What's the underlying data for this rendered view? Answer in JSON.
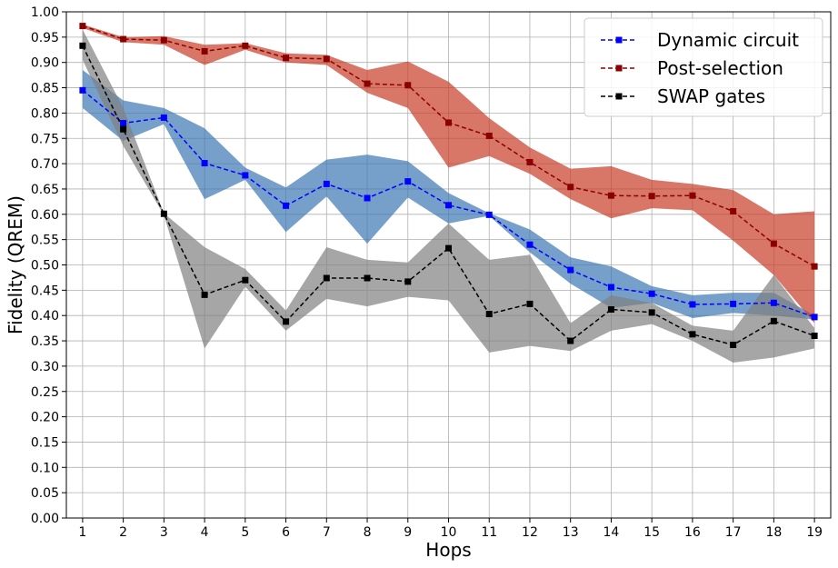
{
  "chart_data": {
    "type": "line",
    "xlabel": "Hops",
    "ylabel": "Fidelity (QREM)",
    "xlim": [
      0.6,
      19.4
    ],
    "ylim": [
      0.0,
      1.0
    ],
    "x": [
      1,
      2,
      3,
      4,
      5,
      6,
      7,
      8,
      9,
      10,
      11,
      12,
      13,
      14,
      15,
      16,
      17,
      18,
      19
    ],
    "xticks": [
      "1",
      "2",
      "3",
      "4",
      "5",
      "6",
      "7",
      "8",
      "9",
      "10",
      "11",
      "12",
      "13",
      "14",
      "15",
      "16",
      "17",
      "18",
      "19"
    ],
    "yticks": [
      "0.00",
      "0.05",
      "0.10",
      "0.15",
      "0.20",
      "0.25",
      "0.30",
      "0.35",
      "0.40",
      "0.45",
      "0.50",
      "0.55",
      "0.60",
      "0.65",
      "0.70",
      "0.75",
      "0.80",
      "0.85",
      "0.90",
      "0.95",
      "1.00"
    ],
    "yticks_values": [
      0.0,
      0.05,
      0.1,
      0.15,
      0.2,
      0.25,
      0.3,
      0.35,
      0.4,
      0.45,
      0.5,
      0.55,
      0.6,
      0.65,
      0.7,
      0.75,
      0.8,
      0.85,
      0.9,
      0.95,
      1.0
    ],
    "grid": true,
    "legend_position": "top-right",
    "series": [
      {
        "name": "Dynamic circuit",
        "color": "#0000ff",
        "band_color": "#3c78b4",
        "values": [
          0.845,
          0.78,
          0.791,
          0.701,
          0.677,
          0.617,
          0.66,
          0.632,
          0.665,
          0.618,
          0.599,
          0.54,
          0.49,
          0.456,
          0.443,
          0.422,
          0.423,
          0.425,
          0.397
        ],
        "upper": [
          0.885,
          0.825,
          0.81,
          0.77,
          0.692,
          0.653,
          0.708,
          0.718,
          0.705,
          0.642,
          0.602,
          0.57,
          0.515,
          0.497,
          0.458,
          0.44,
          0.445,
          0.445,
          0.4
        ],
        "lower": [
          0.81,
          0.745,
          0.778,
          0.63,
          0.668,
          0.565,
          0.635,
          0.542,
          0.633,
          0.582,
          0.597,
          0.525,
          0.463,
          0.415,
          0.425,
          0.395,
          0.405,
          0.4,
          0.392
        ]
      },
      {
        "name": "Post-selection",
        "color": "#8b0000",
        "band_color": "#c83c28",
        "values": [
          0.972,
          0.946,
          0.944,
          0.922,
          0.933,
          0.909,
          0.907,
          0.858,
          0.855,
          0.781,
          0.755,
          0.703,
          0.654,
          0.637,
          0.636,
          0.637,
          0.606,
          0.542,
          0.497
        ],
        "upper": [
          0.975,
          0.95,
          0.952,
          0.935,
          0.938,
          0.918,
          0.915,
          0.885,
          0.902,
          0.862,
          0.79,
          0.732,
          0.69,
          0.695,
          0.668,
          0.66,
          0.648,
          0.6,
          0.606
        ],
        "lower": [
          0.968,
          0.94,
          0.935,
          0.895,
          0.925,
          0.9,
          0.895,
          0.84,
          0.81,
          0.692,
          0.715,
          0.68,
          0.63,
          0.592,
          0.612,
          0.608,
          0.548,
          0.48,
          0.385
        ]
      },
      {
        "name": "SWAP gates",
        "color": "#000000",
        "band_color": "#808080",
        "values": [
          0.933,
          0.768,
          0.601,
          0.441,
          0.47,
          0.388,
          0.474,
          0.474,
          0.467,
          0.533,
          0.403,
          0.423,
          0.35,
          0.412,
          0.406,
          0.363,
          0.342,
          0.389,
          0.36
        ],
        "upper": [
          0.965,
          0.81,
          0.602,
          0.535,
          0.492,
          0.41,
          0.535,
          0.51,
          0.505,
          0.582,
          0.51,
          0.52,
          0.385,
          0.44,
          0.425,
          0.38,
          0.37,
          0.48,
          0.375
        ],
        "lower": [
          0.905,
          0.735,
          0.598,
          0.335,
          0.457,
          0.37,
          0.433,
          0.418,
          0.437,
          0.43,
          0.327,
          0.34,
          0.33,
          0.37,
          0.383,
          0.35,
          0.307,
          0.317,
          0.335
        ]
      }
    ]
  }
}
